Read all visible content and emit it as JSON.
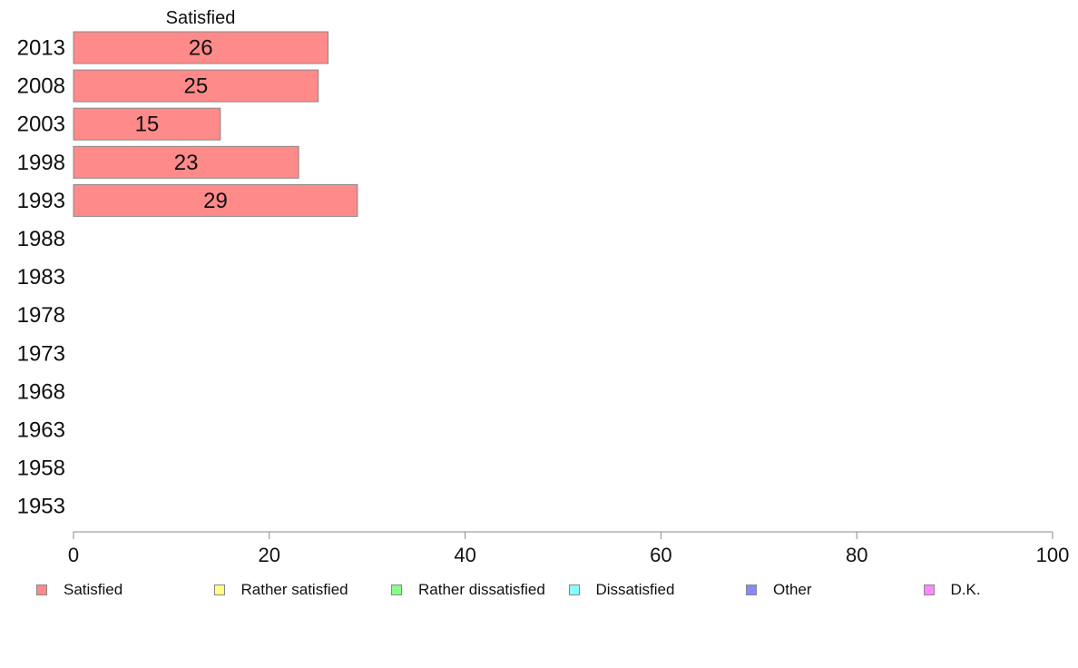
{
  "chart_data": {
    "type": "bar",
    "orientation": "horizontal",
    "stacked": true,
    "categories": [
      "2013",
      "2008",
      "2003",
      "1998",
      "1993",
      "1988",
      "1983",
      "1978",
      "1973",
      "1968",
      "1963",
      "1958",
      "1953"
    ],
    "series": [
      {
        "name": "Satisfied",
        "color": "#ff8a8a",
        "values": [
          26,
          25,
          15,
          23,
          29,
          null,
          null,
          null,
          null,
          null,
          null,
          null,
          null
        ]
      },
      {
        "name": "Rather satisfied",
        "color": "#ffff88",
        "values": [
          null,
          null,
          null,
          null,
          null,
          null,
          null,
          null,
          null,
          null,
          null,
          null,
          null
        ]
      },
      {
        "name": "Rather dissatisfied",
        "color": "#88ff88",
        "values": [
          null,
          null,
          null,
          null,
          null,
          null,
          null,
          null,
          null,
          null,
          null,
          null,
          null
        ]
      },
      {
        "name": "Dissatisfied",
        "color": "#88ffff",
        "values": [
          null,
          null,
          null,
          null,
          null,
          null,
          null,
          null,
          null,
          null,
          null,
          null,
          null
        ]
      },
      {
        "name": "Other",
        "color": "#8888ff",
        "values": [
          null,
          null,
          null,
          null,
          null,
          null,
          null,
          null,
          null,
          null,
          null,
          null,
          null
        ]
      },
      {
        "name": "D.K.",
        "color": "#ff88ff",
        "values": [
          null,
          null,
          null,
          null,
          null,
          null,
          null,
          null,
          null,
          null,
          null,
          null,
          null
        ]
      }
    ],
    "top_label": "Satisfied",
    "xlim": [
      0,
      100
    ],
    "xticks": [
      0,
      20,
      40,
      60,
      80,
      100
    ],
    "grid": false,
    "legend_position": "bottom"
  }
}
